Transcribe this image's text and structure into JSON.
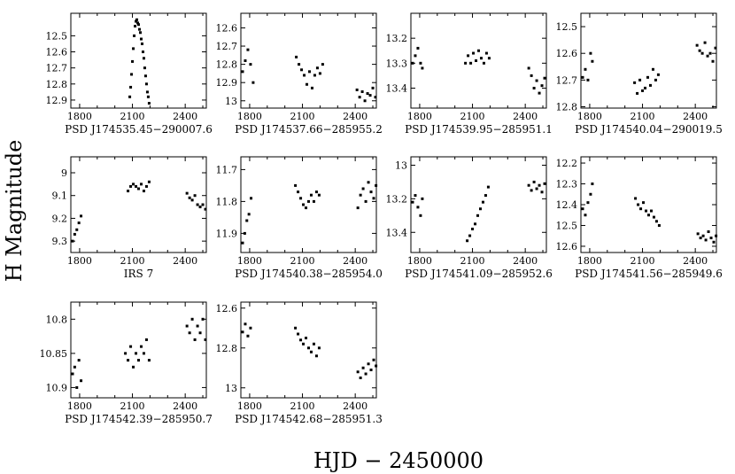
{
  "figure": {
    "ylabel": "H Magnitude",
    "xlabel": "HJD  −  2450000"
  },
  "chart_data": [
    {
      "type": "scatter",
      "title": "PSD J174535.45−290007.6",
      "xlim": [
        1750,
        2520
      ],
      "ylim": [
        12.95,
        12.36
      ],
      "yticks": [
        12.5,
        12.6,
        12.7,
        12.8,
        12.9
      ],
      "xticks": [
        1800,
        2100,
        2400
      ],
      "series": [
        {
          "x": [
            2085,
            2090,
            2095,
            2100,
            2105,
            2110,
            2115,
            2120,
            2125,
            2130,
            2135,
            2140,
            2145,
            2150,
            2155,
            2160,
            2165,
            2170,
            2175,
            2180,
            2185,
            2190,
            2195
          ],
          "y": [
            12.88,
            12.82,
            12.74,
            12.66,
            12.58,
            12.5,
            12.44,
            12.41,
            12.4,
            12.42,
            12.43,
            12.46,
            12.48,
            12.52,
            12.55,
            12.6,
            12.64,
            12.7,
            12.75,
            12.8,
            12.85,
            12.88,
            12.92
          ]
        }
      ]
    },
    {
      "type": "scatter",
      "title": "PSD J174537.66−285955.2",
      "xlim": [
        1750,
        2520
      ],
      "ylim": [
        13.04,
        12.52
      ],
      "yticks": [
        12.6,
        12.7,
        12.8,
        12.9,
        13
      ],
      "xticks": [
        1800,
        2100,
        2400
      ],
      "series": [
        {
          "x": [
            1760,
            1775,
            1790,
            1805,
            1820,
            2065,
            2080,
            2095,
            2110,
            2125,
            2140,
            2155,
            2170,
            2185,
            2200,
            2215,
            2410,
            2425,
            2440,
            2455,
            2470,
            2485,
            2500,
            2515
          ],
          "y": [
            12.84,
            12.78,
            12.72,
            12.8,
            12.9,
            12.76,
            12.8,
            12.83,
            12.86,
            12.91,
            12.84,
            12.93,
            12.86,
            12.82,
            12.85,
            12.8,
            12.94,
            12.98,
            12.95,
            13.0,
            12.96,
            12.97,
            12.93,
            12.98
          ]
        }
      ]
    },
    {
      "type": "scatter",
      "title": "PSD J174539.95−285951.1",
      "xlim": [
        1750,
        2520
      ],
      "ylim": [
        13.48,
        13.1
      ],
      "yticks": [
        13.2,
        13.3,
        13.4
      ],
      "xticks": [
        1800,
        2100,
        2400
      ],
      "series": [
        {
          "x": [
            1760,
            1775,
            1790,
            1805,
            1815,
            2060,
            2075,
            2090,
            2105,
            2120,
            2135,
            2150,
            2165,
            2180,
            2195,
            2420,
            2435,
            2450,
            2465,
            2480,
            2495,
            2510
          ],
          "y": [
            13.3,
            13.27,
            13.24,
            13.3,
            13.32,
            13.3,
            13.27,
            13.3,
            13.26,
            13.29,
            13.25,
            13.28,
            13.3,
            13.26,
            13.28,
            13.32,
            13.35,
            13.4,
            13.37,
            13.42,
            13.39,
            13.36
          ]
        }
      ]
    },
    {
      "type": "scatter",
      "title": "PSD J174540.04−290019.5",
      "xlim": [
        1750,
        2520
      ],
      "ylim": [
        12.805,
        12.45
      ],
      "yticks": [
        12.5,
        12.6,
        12.7,
        12.8
      ],
      "xticks": [
        1800,
        2100,
        2400
      ],
      "series": [
        {
          "x": [
            1760,
            1775,
            1790,
            1805,
            1815,
            2055,
            2070,
            2085,
            2100,
            2115,
            2130,
            2145,
            2160,
            2175,
            2190,
            2410,
            2425,
            2440,
            2455,
            2470,
            2485,
            2500,
            2515
          ],
          "y": [
            12.69,
            12.66,
            12.7,
            12.6,
            12.63,
            12.71,
            12.75,
            12.7,
            12.74,
            12.73,
            12.69,
            12.72,
            12.66,
            12.7,
            12.68,
            12.57,
            12.59,
            12.6,
            12.56,
            12.61,
            12.6,
            12.63,
            12.58
          ]
        }
      ]
    },
    {
      "type": "scatter",
      "title": "IRS 7",
      "xlim": [
        1750,
        2520
      ],
      "ylim": [
        9.35,
        8.93
      ],
      "yticks": [
        9,
        9.1,
        9.2,
        9.3
      ],
      "xticks": [
        1800,
        2100,
        2400
      ],
      "series": [
        {
          "x": [
            1760,
            1772,
            1784,
            1796,
            1808,
            2075,
            2090,
            2105,
            2120,
            2135,
            2150,
            2165,
            2180,
            2195,
            2410,
            2425,
            2440,
            2455,
            2470,
            2485,
            2500,
            2515
          ],
          "y": [
            9.3,
            9.27,
            9.25,
            9.22,
            9.19,
            9.08,
            9.06,
            9.05,
            9.06,
            9.07,
            9.05,
            9.08,
            9.06,
            9.04,
            9.09,
            9.11,
            9.12,
            9.1,
            9.14,
            9.15,
            9.14,
            9.16
          ]
        }
      ]
    },
    {
      "type": "scatter",
      "title": "PSD J174540.38−285954.0",
      "xlim": [
        1750,
        2520
      ],
      "ylim": [
        11.96,
        11.66
      ],
      "yticks": [
        11.7,
        11.8,
        11.9
      ],
      "xticks": [
        1800,
        2100,
        2400
      ],
      "series": [
        {
          "x": [
            1760,
            1772,
            1784,
            1796,
            1808,
            2060,
            2075,
            2090,
            2105,
            2120,
            2135,
            2150,
            2165,
            2180,
            2195,
            2415,
            2430,
            2445,
            2460,
            2475,
            2490,
            2505,
            2518
          ],
          "y": [
            11.93,
            11.9,
            11.86,
            11.84,
            11.79,
            11.75,
            11.77,
            11.79,
            11.81,
            11.82,
            11.8,
            11.78,
            11.8,
            11.77,
            11.78,
            11.82,
            11.78,
            11.76,
            11.8,
            11.74,
            11.77,
            11.79,
            11.75
          ]
        }
      ]
    },
    {
      "type": "scatter",
      "title": "PSD J174541.09−285952.6",
      "xlim": [
        1750,
        2520
      ],
      "ylim": [
        13.52,
        12.95
      ],
      "yticks": [
        13,
        13.2,
        13.4
      ],
      "xticks": [
        1800,
        2100,
        2400
      ],
      "series": [
        {
          "x": [
            1760,
            1775,
            1790,
            1805,
            1815,
            2070,
            2085,
            2100,
            2115,
            2130,
            2145,
            2160,
            2175,
            2190,
            2420,
            2435,
            2450,
            2465,
            2480,
            2495,
            2510
          ],
          "y": [
            13.22,
            13.18,
            13.25,
            13.3,
            13.2,
            13.45,
            13.42,
            13.38,
            13.35,
            13.3,
            13.26,
            13.22,
            13.18,
            13.13,
            13.12,
            13.15,
            13.1,
            13.14,
            13.12,
            13.16,
            13.11
          ]
        }
      ]
    },
    {
      "type": "scatter",
      "title": "PSD J174541.56−285949.6",
      "xlim": [
        1750,
        2520
      ],
      "ylim": [
        12.63,
        12.17
      ],
      "yticks": [
        12.2,
        12.3,
        12.4,
        12.5,
        12.6
      ],
      "xticks": [
        1800,
        2100,
        2400
      ],
      "series": [
        {
          "x": [
            1760,
            1775,
            1790,
            1805,
            1815,
            2060,
            2075,
            2090,
            2105,
            2120,
            2135,
            2150,
            2165,
            2180,
            2195,
            2415,
            2430,
            2445,
            2460,
            2475,
            2490,
            2505,
            2518
          ],
          "y": [
            12.42,
            12.45,
            12.39,
            12.35,
            12.3,
            12.37,
            12.4,
            12.42,
            12.39,
            12.43,
            12.45,
            12.43,
            12.46,
            12.48,
            12.5,
            12.54,
            12.56,
            12.55,
            12.57,
            12.53,
            12.56,
            12.58,
            12.55
          ]
        }
      ]
    },
    {
      "type": "scatter",
      "title": "PSD J174542.39−285950.7",
      "xlim": [
        1750,
        2520
      ],
      "ylim": [
        10.915,
        10.775
      ],
      "yticks": [
        10.8,
        10.85,
        10.9
      ],
      "xticks": [
        1800,
        2100,
        2400
      ],
      "series": [
        {
          "x": [
            1760,
            1772,
            1784,
            1796,
            1808,
            2060,
            2075,
            2090,
            2105,
            2120,
            2135,
            2150,
            2165,
            2180,
            2195,
            2410,
            2425,
            2440,
            2455,
            2470,
            2485,
            2500,
            2515
          ],
          "y": [
            10.88,
            10.87,
            10.9,
            10.86,
            10.89,
            10.85,
            10.86,
            10.84,
            10.87,
            10.85,
            10.86,
            10.84,
            10.85,
            10.83,
            10.86,
            10.81,
            10.82,
            10.8,
            10.83,
            10.81,
            10.82,
            10.8,
            10.83
          ]
        }
      ]
    },
    {
      "type": "scatter",
      "title": "PSD J174542.68−285951.3",
      "xlim": [
        1750,
        2520
      ],
      "ylim": [
        13.05,
        12.57
      ],
      "yticks": [
        12.6,
        12.8,
        13
      ],
      "xticks": [
        1800,
        2100,
        2400
      ],
      "series": [
        {
          "x": [
            1760,
            1775,
            1790,
            1805,
            2060,
            2075,
            2090,
            2105,
            2120,
            2135,
            2150,
            2165,
            2180,
            2195,
            2415,
            2430,
            2445,
            2460,
            2475,
            2490,
            2505,
            2518
          ],
          "y": [
            12.72,
            12.68,
            12.74,
            12.7,
            12.7,
            12.73,
            12.76,
            12.78,
            12.75,
            12.8,
            12.82,
            12.78,
            12.84,
            12.8,
            12.92,
            12.95,
            12.9,
            12.93,
            12.88,
            12.91,
            12.86,
            12.89
          ]
        }
      ]
    }
  ]
}
